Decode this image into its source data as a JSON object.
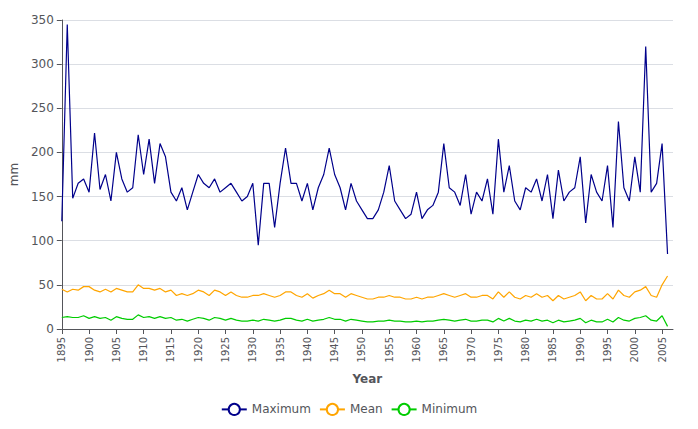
{
  "chart_data": {
    "type": "line",
    "x": [
      1895,
      1896,
      1897,
      1898,
      1899,
      1900,
      1901,
      1902,
      1903,
      1904,
      1905,
      1906,
      1907,
      1908,
      1909,
      1910,
      1911,
      1912,
      1913,
      1914,
      1915,
      1916,
      1917,
      1918,
      1919,
      1920,
      1921,
      1922,
      1923,
      1924,
      1925,
      1926,
      1927,
      1928,
      1929,
      1930,
      1931,
      1932,
      1933,
      1934,
      1935,
      1936,
      1937,
      1938,
      1939,
      1940,
      1941,
      1942,
      1943,
      1944,
      1945,
      1946,
      1947,
      1948,
      1949,
      1950,
      1951,
      1952,
      1953,
      1954,
      1955,
      1956,
      1957,
      1958,
      1959,
      1960,
      1961,
      1962,
      1963,
      1964,
      1965,
      1966,
      1967,
      1968,
      1969,
      1970,
      1971,
      1972,
      1973,
      1974,
      1975,
      1976,
      1977,
      1978,
      1979,
      1980,
      1981,
      1982,
      1983,
      1984,
      1985,
      1986,
      1987,
      1988,
      1989,
      1990,
      1991,
      1992,
      1993,
      1994,
      1995,
      1996,
      1997,
      1998,
      1999,
      2000,
      2001,
      2002,
      2003,
      2004,
      2005,
      2006
    ],
    "series": [
      {
        "name": "Maximum",
        "color": "#00008B",
        "values": [
          122,
          345,
          148,
          165,
          170,
          155,
          222,
          158,
          175,
          145,
          200,
          170,
          155,
          160,
          220,
          175,
          215,
          165,
          210,
          195,
          155,
          145,
          160,
          135,
          155,
          175,
          165,
          160,
          170,
          155,
          160,
          165,
          155,
          145,
          150,
          165,
          95,
          165,
          165,
          115,
          165,
          205,
          165,
          165,
          145,
          165,
          135,
          160,
          175,
          205,
          175,
          160,
          135,
          165,
          145,
          135,
          125,
          125,
          135,
          155,
          185,
          145,
          135,
          125,
          130,
          155,
          125,
          135,
          140,
          155,
          210,
          160,
          155,
          140,
          175,
          130,
          155,
          145,
          170,
          130,
          215,
          155,
          185,
          145,
          135,
          160,
          155,
          170,
          145,
          175,
          125,
          180,
          145,
          155,
          160,
          195,
          120,
          175,
          155,
          145,
          185,
          115,
          235,
          160,
          145,
          195,
          155,
          320,
          155,
          165,
          210,
          85
        ]
      },
      {
        "name": "Mean",
        "color": "#FFA500",
        "values": [
          45,
          42,
          45,
          44,
          48,
          48,
          44,
          42,
          45,
          42,
          46,
          44,
          42,
          42,
          50,
          46,
          46,
          44,
          46,
          42,
          44,
          38,
          40,
          38,
          40,
          44,
          42,
          38,
          44,
          42,
          38,
          42,
          38,
          36,
          36,
          38,
          38,
          40,
          38,
          36,
          38,
          42,
          42,
          38,
          36,
          40,
          35,
          38,
          40,
          44,
          40,
          40,
          36,
          40,
          38,
          36,
          34,
          34,
          36,
          36,
          38,
          36,
          36,
          34,
          34,
          36,
          34,
          36,
          36,
          38,
          40,
          38,
          36,
          38,
          40,
          36,
          36,
          38,
          38,
          34,
          42,
          36,
          42,
          36,
          34,
          38,
          36,
          40,
          36,
          38,
          32,
          38,
          34,
          36,
          38,
          42,
          32,
          38,
          34,
          34,
          40,
          34,
          44,
          38,
          36,
          42,
          44,
          48,
          38,
          36,
          50,
          60
        ]
      },
      {
        "name": "Minimum",
        "color": "#00CC00",
        "values": [
          13,
          14,
          13,
          13,
          15,
          12,
          14,
          12,
          13,
          10,
          14,
          12,
          11,
          11,
          16,
          13,
          14,
          12,
          14,
          12,
          13,
          10,
          11,
          9,
          11,
          13,
          12,
          10,
          13,
          12,
          10,
          12,
          10,
          9,
          9,
          10,
          9,
          11,
          10,
          9,
          10,
          12,
          12,
          10,
          9,
          11,
          9,
          10,
          11,
          13,
          11,
          11,
          9,
          11,
          10,
          9,
          8,
          8,
          9,
          9,
          10,
          9,
          9,
          8,
          8,
          9,
          8,
          9,
          9,
          10,
          11,
          10,
          9,
          10,
          11,
          9,
          9,
          10,
          10,
          8,
          12,
          9,
          12,
          9,
          8,
          10,
          9,
          11,
          9,
          10,
          7,
          10,
          8,
          9,
          10,
          12,
          7,
          10,
          8,
          8,
          11,
          8,
          13,
          10,
          9,
          12,
          13,
          15,
          10,
          9,
          15,
          3
        ]
      }
    ],
    "xlabel": "Year",
    "ylabel": "mm",
    "xlim": [
      1895,
      2007
    ],
    "xticks": [
      1895,
      1900,
      1905,
      1910,
      1915,
      1920,
      1925,
      1930,
      1935,
      1940,
      1945,
      1950,
      1955,
      1960,
      1965,
      1970,
      1975,
      1980,
      1985,
      1990,
      1995,
      2000,
      2005
    ],
    "ylim": [
      0,
      350
    ],
    "yticks": [
      0,
      50,
      100,
      150,
      200,
      250,
      300,
      350
    ],
    "grid": true,
    "legend": "bottom"
  }
}
